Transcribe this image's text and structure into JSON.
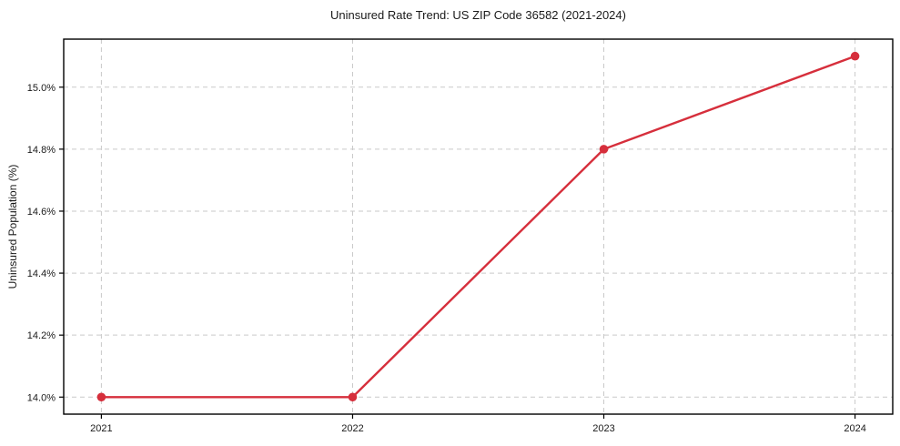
{
  "chart_data": {
    "type": "line",
    "title": "Uninsured Rate Trend: US ZIP Code 36582 (2021-2024)",
    "xlabel": "",
    "ylabel": "Uninsured Population (%)",
    "x": [
      2021,
      2022,
      2023,
      2024
    ],
    "x_tick_labels": [
      "2021",
      "2022",
      "2023",
      "2024"
    ],
    "series": [
      {
        "name": "Uninsured rate",
        "values": [
          14.0,
          14.0,
          14.8,
          15.1
        ]
      }
    ],
    "y_tick_values": [
      14.0,
      14.2,
      14.4,
      14.6,
      14.8,
      15.0
    ],
    "y_tick_labels": [
      "14.0%",
      "14.2%",
      "14.4%",
      "14.6%",
      "14.8%",
      "15.0%"
    ],
    "xlim": [
      2020.85,
      2024.15
    ],
    "ylim": [
      13.945,
      15.155
    ],
    "grid": true,
    "legend_position": "none",
    "colors": {
      "line": "#d62f3c",
      "marker": "#d62f3c",
      "grid": "#c9c9c9",
      "spine": "#000000",
      "tick_text": "#1a1a1a",
      "background": "#ffffff"
    }
  }
}
